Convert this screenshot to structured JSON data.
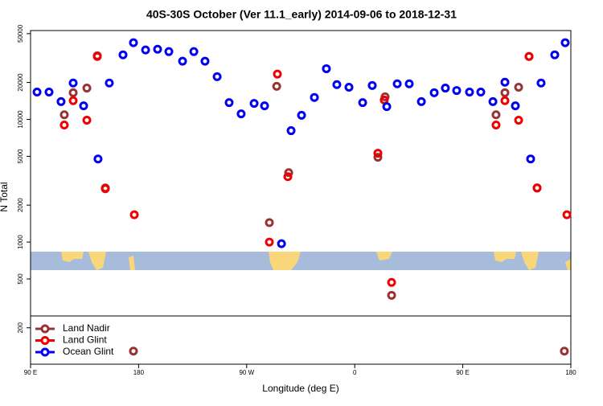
{
  "chart_data": {
    "type": "scatter",
    "title": "40S-30S October (Ver 11.1_early)   2014-09-06 to 2018-12-31",
    "x_label": "Longitude (deg E)",
    "y_label": "N Total",
    "xlim": [
      90,
      540
    ],
    "xticks": [
      {
        "value": 90,
        "label": "90 E"
      },
      180,
      {
        "value": 270,
        "label": "90 W"
      },
      {
        "value": 360,
        "label": "0"
      },
      {
        "value": 450,
        "label": "90 E"
      },
      {
        "value": 540,
        "label": "180"
      }
    ],
    "ylim": [
      101,
      53000
    ],
    "ylog": true,
    "yticks": [
      200,
      500,
      1000,
      2000,
      5000,
      10000,
      20000,
      50000
    ],
    "legend": "bottom-left",
    "series": [
      {
        "name": "Land Nadir",
        "color": "#993333",
        "x": [
          118.1,
          125.5,
          136.9,
          145.6,
          152.3,
          175.7,
          288.9,
          295,
          305,
          379.3,
          385.3,
          390.7,
          477.7,
          485.1,
          496.5,
          505.2,
          511.9,
          534.6
        ],
        "values": [
          10900,
          16500,
          18000,
          33000,
          2760,
          129,
          1440,
          18600,
          3680,
          4910,
          15300,
          368,
          10900,
          16500,
          18300,
          32600,
          2760,
          129
        ]
      },
      {
        "name": "Land Glint",
        "color": "#ee0000",
        "x": [
          118.1,
          125.5,
          136.9,
          145.6,
          152.3,
          176.4,
          288.9,
          295.6,
          304.3,
          379.3,
          384.6,
          390.7,
          477.7,
          485.1,
          496.5,
          505.2,
          511.9,
          536.7
        ],
        "values": [
          9000,
          14200,
          9850,
          32600,
          2720,
          1670,
          1000,
          23400,
          3410,
          5300,
          14400,
          469,
          9000,
          14200,
          9850,
          32600,
          2760,
          1670
        ]
      },
      {
        "name": "Ocean Glint",
        "color": "#0000ee",
        "x": [
          95.4,
          105.4,
          115.4,
          125.5,
          134.2,
          146.2,
          155.6,
          167,
          175.7,
          185.8,
          195.8,
          205.2,
          216.6,
          226,
          235.3,
          245.4,
          255.4,
          265.4,
          276.2,
          284.9,
          299,
          307,
          315.7,
          326.4,
          336.4,
          345.1,
          355.2,
          366.6,
          374.6,
          386.7,
          395.4,
          405.4,
          415.5,
          426.2,
          435.5,
          444.9,
          455.6,
          465,
          475.1,
          485.1,
          493.8,
          506.5,
          515.2,
          526.6,
          535.3
        ],
        "values": [
          16700,
          16700,
          13960,
          19800,
          12900,
          4760,
          19800,
          33600,
          42200,
          36800,
          37300,
          35700,
          29800,
          35700,
          29800,
          22300,
          13700,
          11100,
          13500,
          12900,
          970,
          8090,
          10800,
          15100,
          25900,
          19200,
          18300,
          13700,
          18900,
          12700,
          19500,
          19500,
          13960,
          16500,
          18000,
          17200,
          16700,
          16700,
          13960,
          20100,
          12900,
          4760,
          19800,
          33600,
          42200
        ]
      }
    ]
  }
}
